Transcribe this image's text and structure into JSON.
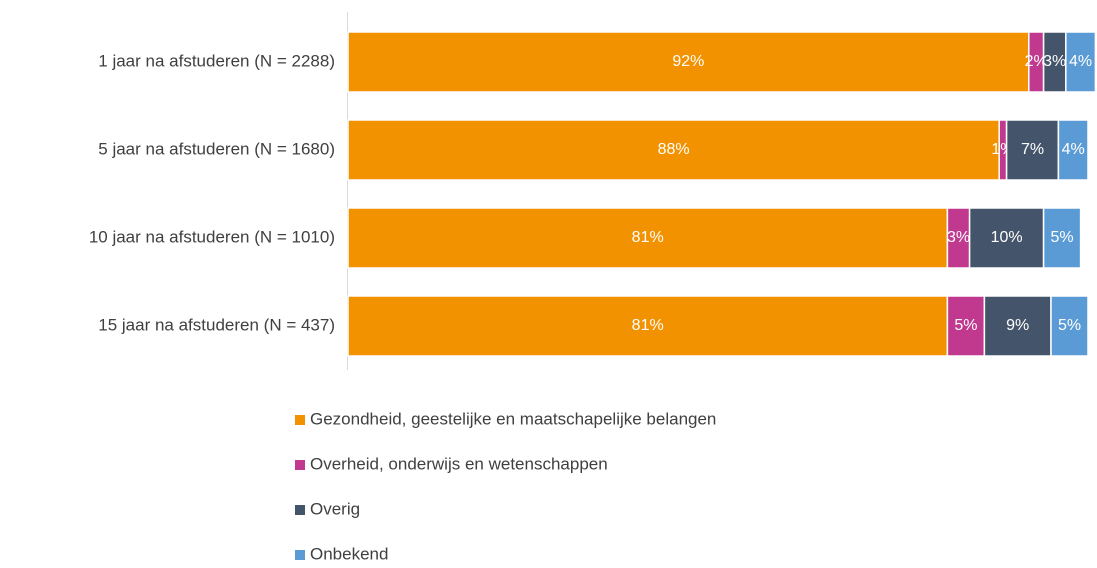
{
  "chart_data": {
    "type": "stacked_barh",
    "categories": [
      "1 jaar na afstuderen (N = 2288)",
      "5 jaar na afstuderen (N = 1680)",
      "10 jaar na afstuderen (N = 1010)",
      "15 jaar na afstuderen (N = 437)"
    ],
    "series": [
      {
        "name": "Gezondheid, geestelijke en maatschapelijke belangen",
        "color": "#f39200",
        "values": [
          92,
          88,
          81,
          81
        ],
        "value_labels": [
          "92%",
          "88%",
          "81%",
          "81%"
        ]
      },
      {
        "name": "Overheid, onderwijs en wetenschappen",
        "color": "#c0398f",
        "values": [
          2,
          1,
          3,
          5
        ],
        "value_labels": [
          "2%",
          "1%",
          "3%",
          "5%"
        ]
      },
      {
        "name": "Overig",
        "color": "#44546a",
        "values": [
          3,
          7,
          10,
          9
        ],
        "value_labels": [
          "3%",
          "7%",
          "10%",
          "9%"
        ]
      },
      {
        "name": "Onbekend",
        "color": "#5b9bd5",
        "values": [
          4,
          4,
          5,
          5
        ],
        "value_labels": [
          "4%",
          "4%",
          "5%",
          "5%"
        ]
      }
    ],
    "xlim": [
      0,
      100
    ],
    "legend": "bottom"
  }
}
